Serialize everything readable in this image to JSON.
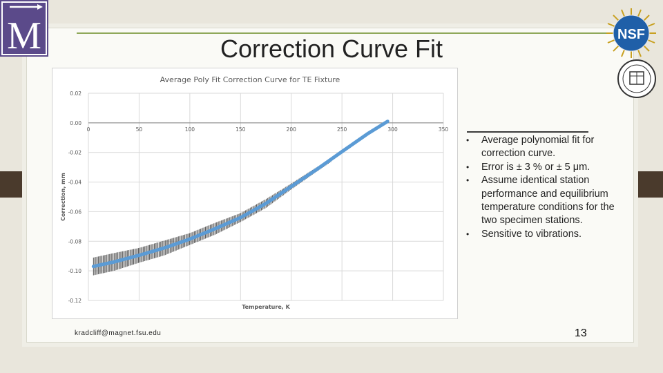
{
  "slide": {
    "title": "Correction Curve Fit",
    "logo_letter": "M",
    "nsf_text": "NSF",
    "email": "kradcliff@magnet.fsu.edu",
    "page_number": "13",
    "bullets": [
      "Average polynomial fit for correction curve.",
      "Error is ± 3 % or ± 5 μm.",
      "Assume identical station performance and equilibrium temperature conditions for the two specimen stations.",
      "Sensitive to vibrations."
    ],
    "colors": {
      "accent_green": "#8fa85a",
      "logo_purple": "#5b4a8a",
      "fit_line": "#5b9bd5",
      "data_band": "#555555"
    }
  },
  "chart_data": {
    "type": "line",
    "title": "Average Poly Fit Correction Curve for TE Fixture",
    "xlabel": "Temperature, K",
    "ylabel": "Correction, mm",
    "xlim": [
      0,
      350
    ],
    "ylim": [
      -0.12,
      0.02
    ],
    "x_ticks": [
      "0",
      "50",
      "100",
      "150",
      "200",
      "250",
      "300",
      "350"
    ],
    "y_ticks": [
      "0.02",
      "0.00",
      "-0.02",
      "-0.04",
      "-0.06",
      "-0.08",
      "-0.10",
      "-0.12"
    ],
    "x_axis_at_y": 0,
    "grid": true,
    "legend": "none",
    "series": [
      {
        "kind": "fit",
        "x": [
          5,
          25,
          50,
          75,
          100,
          125,
          150,
          175,
          200,
          225,
          250,
          275,
          295
        ],
        "y": [
          -0.097,
          -0.094,
          -0.0895,
          -0.0845,
          -0.0785,
          -0.0715,
          -0.064,
          -0.0545,
          -0.043,
          -0.0315,
          -0.0195,
          -0.0075,
          0.001
        ]
      },
      {
        "kind": "measured_band",
        "x": [
          5,
          25,
          50,
          75,
          100,
          125,
          150,
          175,
          200,
          225,
          240
        ],
        "y": [
          -0.097,
          -0.094,
          -0.0895,
          -0.0845,
          -0.0785,
          -0.0715,
          -0.064,
          -0.0545,
          -0.043,
          -0.0315,
          -0.025
        ],
        "spread": [
          0.006,
          0.006,
          0.005,
          0.005,
          0.004,
          0.004,
          0.003,
          0.003,
          0.002,
          0.0015,
          0.001
        ]
      }
    ]
  }
}
